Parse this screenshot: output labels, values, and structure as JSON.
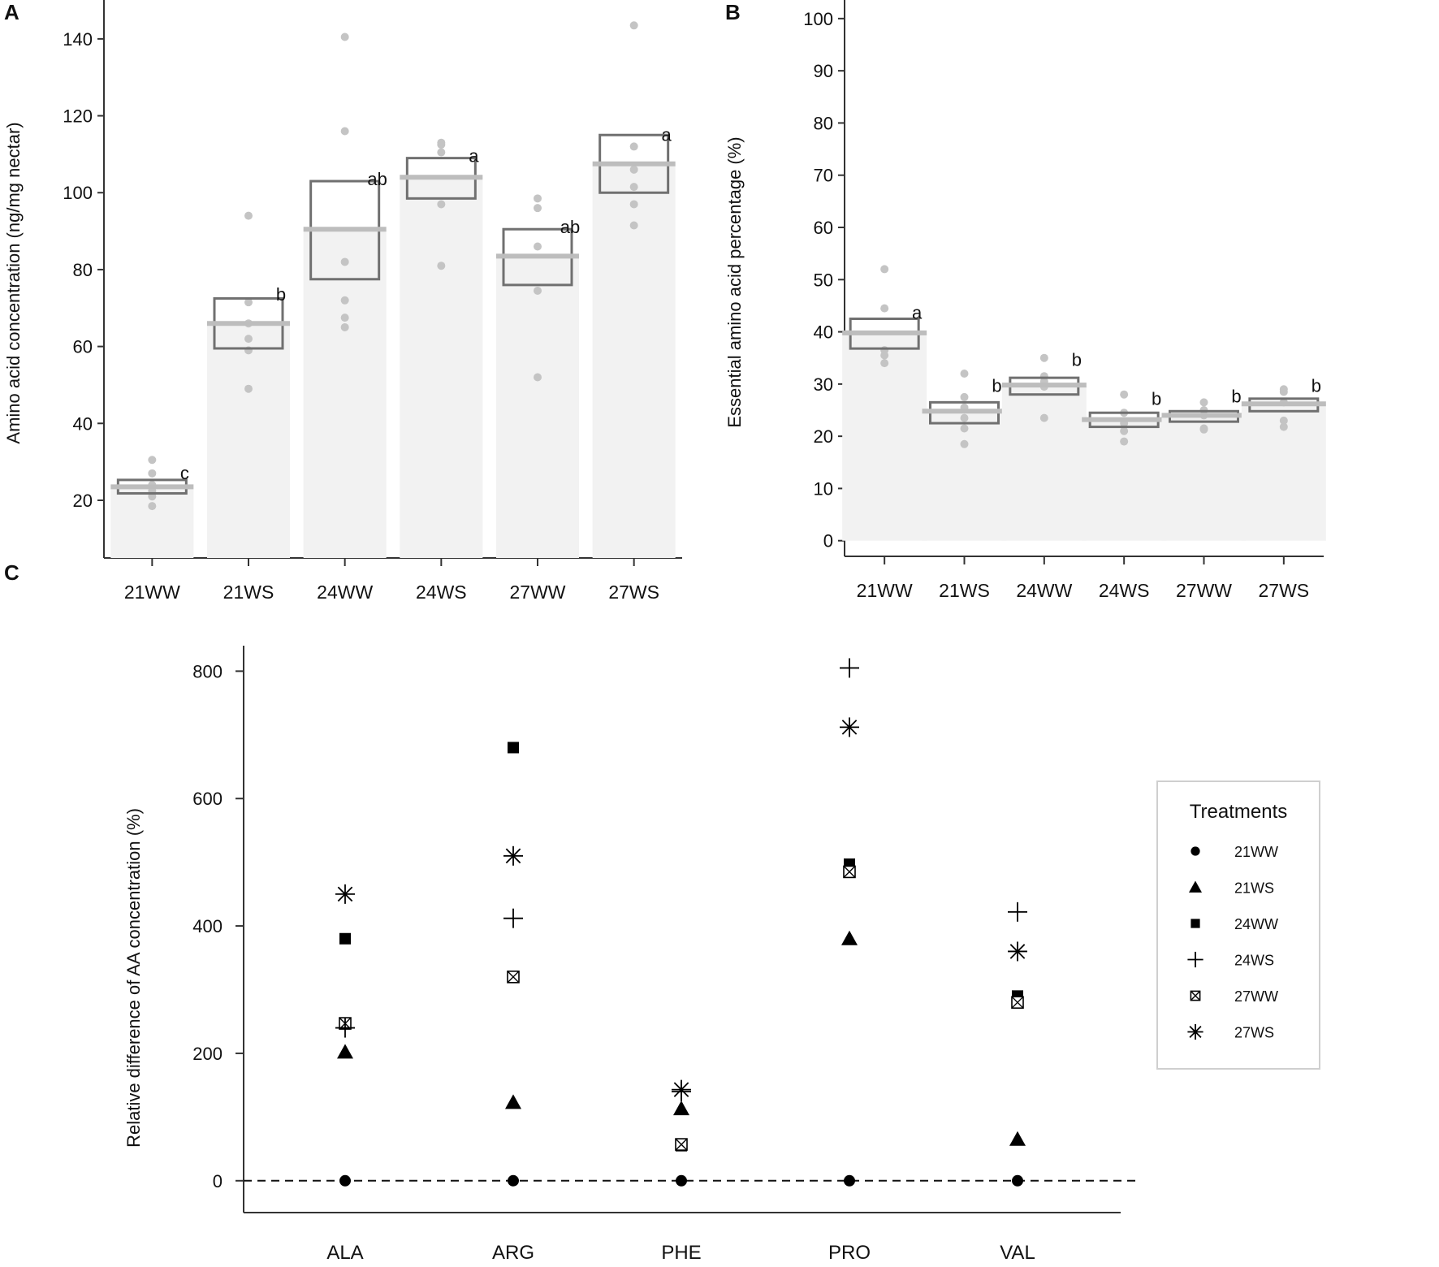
{
  "colors": {
    "bar": "#f2f2f2",
    "box": "#707070",
    "mean": "#bdbdbd",
    "point": "#c4c4c4",
    "axis": "#333333",
    "marker": "#000000"
  },
  "chart_data": [
    {
      "panel": "A",
      "type": "bar",
      "title": "",
      "xlabel": "",
      "ylabel": "Amino acid concentration (ng/mg nectar)",
      "ylim": [
        5,
        148
      ],
      "yticks": [
        20,
        40,
        60,
        80,
        100,
        120,
        140
      ],
      "categories": [
        "21WW",
        "21WS",
        "24WW",
        "24WS",
        "27WW",
        "27WS"
      ],
      "means": [
        23.5,
        66,
        90.5,
        104,
        83.5,
        107.5
      ],
      "box_low": [
        21.8,
        59.5,
        77.5,
        98.5,
        76,
        100
      ],
      "box_high": [
        25.3,
        72.5,
        103,
        109,
        90.5,
        115
      ],
      "letters": [
        "c",
        "b",
        "ab",
        "a",
        "ab",
        "a"
      ],
      "letter_y": [
        25.5,
        72,
        102,
        108,
        89.5,
        113.5
      ],
      "points": [
        [
          30.5,
          27,
          24,
          22.5,
          21,
          18.5
        ],
        [
          94,
          71.5,
          66,
          62,
          59,
          49
        ],
        [
          140.5,
          116,
          82,
          72,
          67.5,
          65
        ],
        [
          113,
          112.5,
          110.5,
          97,
          81
        ],
        [
          98.5,
          96,
          86,
          74.5,
          52
        ],
        [
          143.5,
          112,
          106,
          101.5,
          97,
          91.5
        ]
      ]
    },
    {
      "panel": "B",
      "type": "bar",
      "title": "",
      "xlabel": "",
      "ylabel": "Essential amino acid percentage (%)",
      "ylim": [
        -3,
        102
      ],
      "yticks": [
        0,
        10,
        20,
        30,
        40,
        50,
        60,
        70,
        80,
        90,
        100
      ],
      "categories": [
        "21WW",
        "21WS",
        "24WW",
        "24WS",
        "27WW",
        "27WS"
      ],
      "means": [
        39.8,
        24.8,
        29.8,
        23.2,
        24,
        26.2
      ],
      "box_low": [
        36.8,
        22.5,
        28,
        21.8,
        22.8,
        24.8
      ],
      "box_high": [
        42.5,
        26.5,
        31.2,
        24.5,
        24.8,
        27.2
      ],
      "letters": [
        "a",
        "b",
        "b",
        "b",
        "b",
        "b"
      ],
      "letter_y": [
        42.5,
        28.5,
        33.5,
        26,
        26.5,
        28.5
      ],
      "points": [
        [
          52,
          44.5,
          36.5,
          35.5,
          34
        ],
        [
          32,
          27.5,
          25.5,
          23.5,
          21.5,
          18.5
        ],
        [
          35,
          31.5,
          30.5,
          29.5,
          23.5
        ],
        [
          28,
          24.5,
          22.5,
          21,
          19
        ],
        [
          26.5,
          25,
          24,
          21.5,
          21.3
        ],
        [
          29,
          28.5,
          26.5,
          23,
          21.8
        ]
      ]
    },
    {
      "panel": "C",
      "type": "scatter",
      "title": "",
      "xlabel": "",
      "ylabel": "Relative difference of AA concentration (%)",
      "ylim": [
        -50,
        840
      ],
      "yticks": [
        0,
        200,
        400,
        600,
        800
      ],
      "categories": [
        "ALA",
        "ARG",
        "PHE",
        "PRO",
        "VAL"
      ],
      "reference_line": 0,
      "legend": {
        "title": "Treatments",
        "position": "right"
      },
      "series": [
        {
          "name": "21WW",
          "marker": "circle",
          "values": [
            0,
            0,
            0,
            0,
            0
          ]
        },
        {
          "name": "21WS",
          "marker": "triangle",
          "values": [
            202,
            123,
            113,
            380,
            65
          ]
        },
        {
          "name": "24WW",
          "marker": "square",
          "values": [
            380,
            680,
            55,
            497,
            290
          ]
        },
        {
          "name": "24WS",
          "marker": "plus",
          "values": [
            240,
            412,
            140,
            805,
            422
          ]
        },
        {
          "name": "27WW",
          "marker": "boxcross",
          "values": [
            247,
            320,
            57,
            485,
            280
          ]
        },
        {
          "name": "27WS",
          "marker": "asterisk",
          "values": [
            450,
            510,
            143,
            712,
            360
          ]
        }
      ]
    }
  ]
}
